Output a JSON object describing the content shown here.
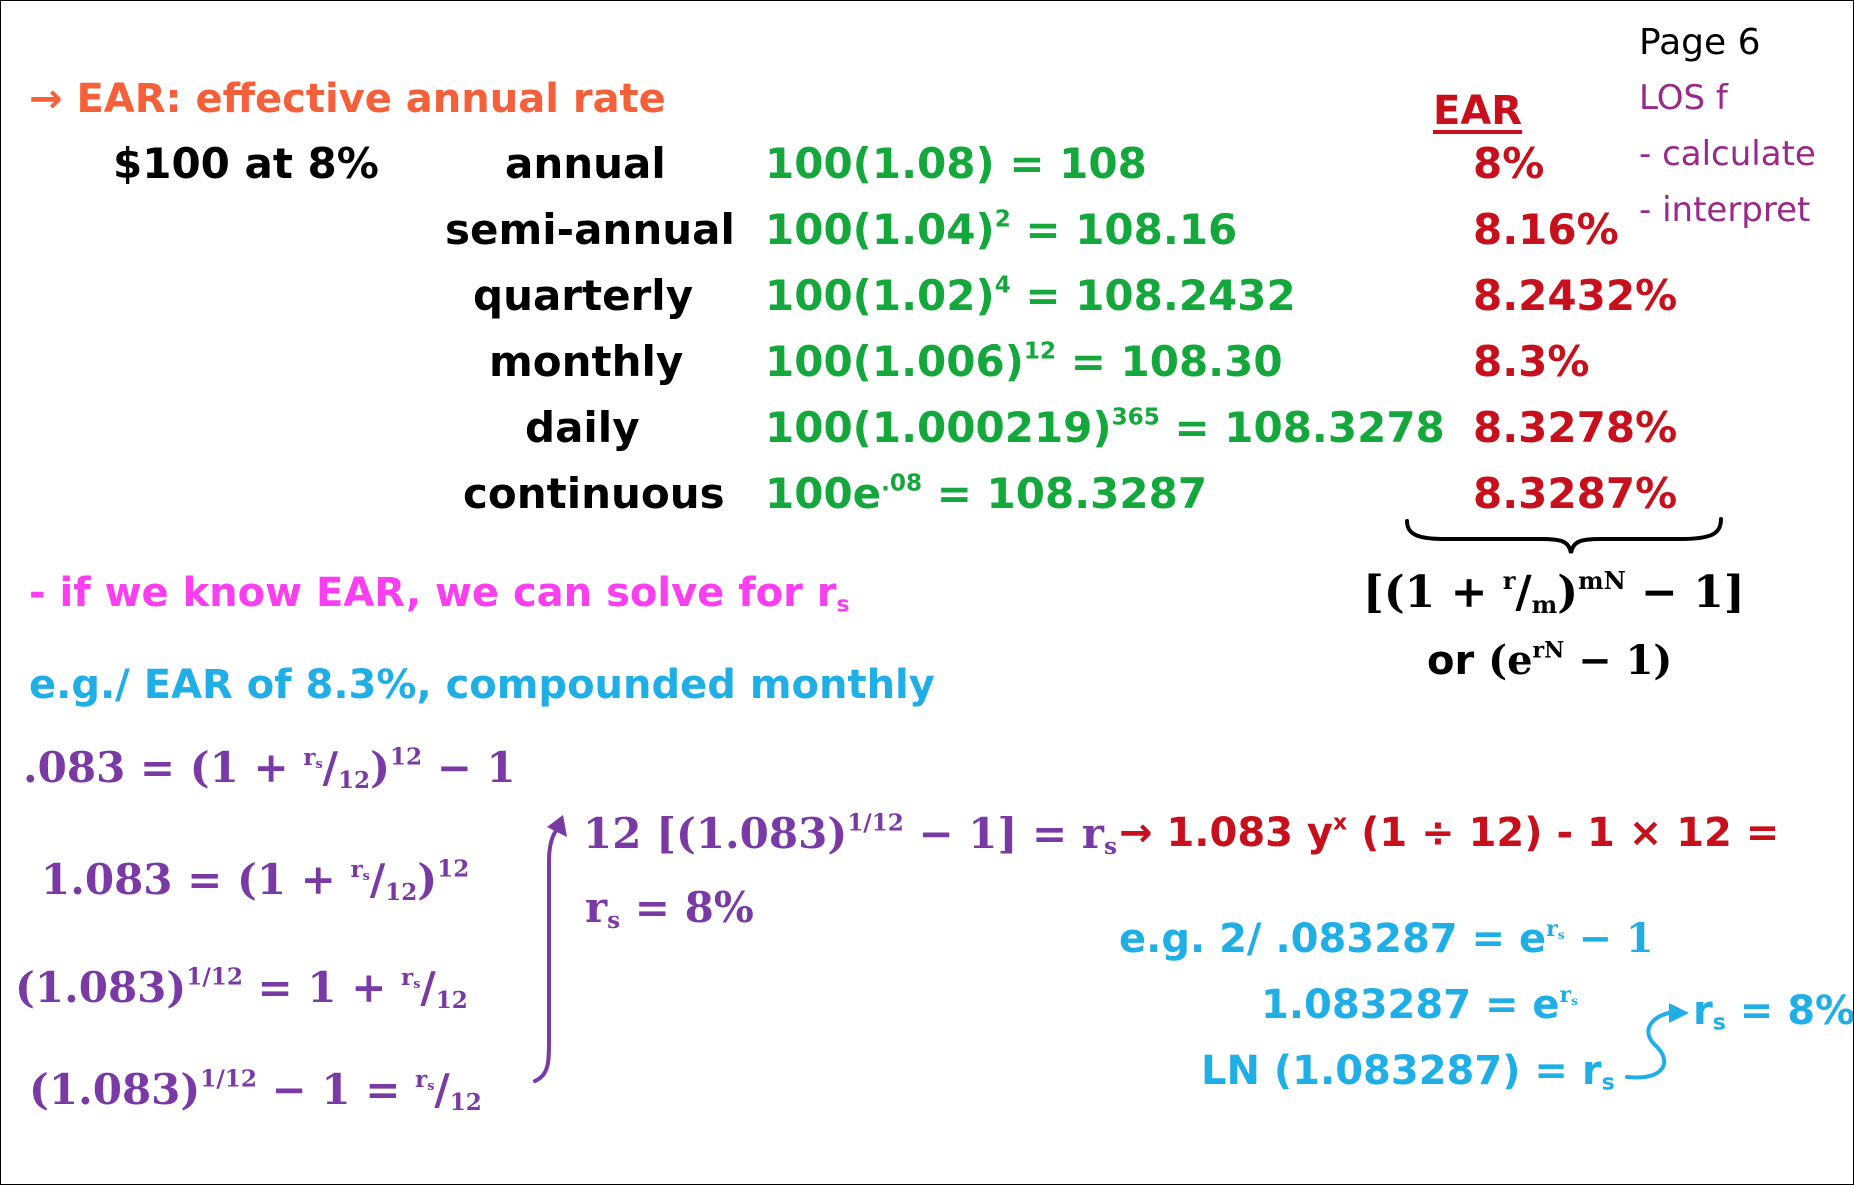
{
  "page_label": "Page 6",
  "los": {
    "title": "LOS f",
    "items": [
      "- calculate",
      "- interpret"
    ]
  },
  "heading": {
    "arrow": "→",
    "text": "EAR: effective annual rate"
  },
  "example_label": "$100 at 8%",
  "ear_header": "EAR",
  "rows": [
    {
      "freq": "annual",
      "base": "100(1.08)",
      "exp": "",
      "result": "= 108",
      "ear": "8%"
    },
    {
      "freq": "semi-annual",
      "base": "100(1.04)",
      "exp": "2",
      "result": "= 108.16",
      "ear": "8.16%"
    },
    {
      "freq": "quarterly",
      "base": "100(1.02)",
      "exp": "4",
      "result": "= 108.2432",
      "ear": "8.2432%"
    },
    {
      "freq": "monthly",
      "base": "100(1.006̇)",
      "exp": "12",
      "result": "= 108.30",
      "ear": "8.3%"
    },
    {
      "freq": "daily",
      "base": "100(1.000219)",
      "exp": "365",
      "result": "= 108.3278",
      "ear": "8.3278%"
    },
    {
      "freq": "continuous",
      "base": "100e",
      "exp": ".08",
      "result": "= 108.3287",
      "ear": "8.3287%"
    }
  ],
  "formula": {
    "line1_open": "[(1 + ",
    "line1_r": "r",
    "line1_m": "m",
    "line1_close": ")",
    "line1_exp": "mN",
    "line1_tail": " − 1]",
    "line2_or": "or ",
    "line2_base": "(e",
    "line2_exp": "rN",
    "line2_tail": " − 1)"
  },
  "note_solve": {
    "text": "- if we know EAR, we can solve for r",
    "sub": "s"
  },
  "example1": {
    "text": "e.g./ EAR of 8.3%, compounded monthly"
  },
  "derivation": {
    "l1_left": ".083 = (1 + ",
    "l1_num": "r",
    "l1_sub": "s",
    "l1_den": "12",
    "l1_exp": "12",
    "l1_tail": " − 1",
    "l2_left": "1.083 = (1 + ",
    "l2_num": "r",
    "l2_sub": "s",
    "l2_den": "12",
    "l2_exp": "12",
    "l3_left": "(1.083)",
    "l3_exp": "1/12",
    "l3_mid": " = 1 + ",
    "l3_num": "r",
    "l3_sub": "s",
    "l3_den": "12",
    "l4_left": "(1.083)",
    "l4_exp": "1/12",
    "l4_mid": " − 1 = ",
    "l4_num": "r",
    "l4_sub": "s",
    "l4_den": "12"
  },
  "solution": {
    "s1_lead": "12 [(1.083)",
    "s1_exp": "1/12",
    "s1_tail": " − 1] = r",
    "s1_sub": "s",
    "s2_r": "r",
    "s2_sub": "s",
    "s2_tail": " = 8%"
  },
  "calculator": {
    "arrow": "→",
    "text_a": "1.083 y",
    "text_x": "x",
    "text_b": " (1 ÷ 12) - 1 × 12 ="
  },
  "example2": {
    "l1_text": "e.g. 2/ .083287 = e",
    "l1_exp": "r",
    "l1_exp_sub": "s",
    "l1_tail": " − 1",
    "l2_text": "1.083287 = e",
    "l2_exp": "r",
    "l2_exp_sub": "s",
    "l3_text": "LN (1.083287) = r",
    "l3_sub": "s",
    "result_r": "r",
    "result_sub": "s",
    "result_tail": " = 8%"
  },
  "colors": {
    "black": "#000000",
    "green": "#14a83c",
    "red": "#c8101c",
    "orange": "#f5603a",
    "magenta": "#fa3ef0",
    "blue": "#1faee6",
    "purple": "#7a3aa6",
    "plum": "#9a2888"
  }
}
